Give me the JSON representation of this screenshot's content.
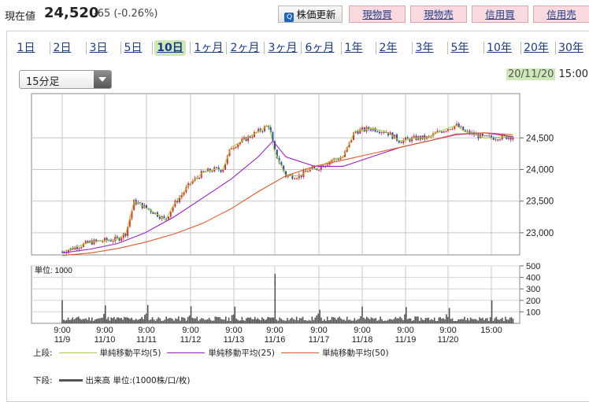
{
  "header": {
    "price_label": "現在値",
    "price_value": "24,520",
    "price_change": "-65 (-0.26%)",
    "refresh_button": "株価更新",
    "buy_spot": "現物買",
    "sell_spot": "現物売",
    "buy_margin": "信用買",
    "sell_margin": "信用売"
  },
  "tabs": [
    {
      "label": "1日",
      "active": false
    },
    {
      "label": "2日",
      "active": false
    },
    {
      "label": "3日",
      "active": false
    },
    {
      "label": "5日",
      "active": false
    },
    {
      "label": "10日",
      "active": true
    },
    {
      "label": "1ヶ月",
      "active": false
    },
    {
      "label": "2ヶ月",
      "active": false
    },
    {
      "label": "3ヶ月",
      "active": false
    },
    {
      "label": "6ヶ月",
      "active": false
    },
    {
      "label": "1年",
      "active": false
    },
    {
      "label": "2年",
      "active": false
    },
    {
      "label": "3年",
      "active": false
    },
    {
      "label": "5年",
      "active": false
    },
    {
      "label": "10年",
      "active": false
    },
    {
      "label": "20年",
      "active": false
    },
    {
      "label": "30年",
      "active": false
    }
  ],
  "interval_select": {
    "value": "15分足"
  },
  "timestamp": {
    "date": "20/11/20",
    "time": "15:00"
  },
  "colors": {
    "up": "#e03030",
    "down": "#2a4ea8",
    "ma5": "#a6cf3a",
    "ma25": "#a020c8",
    "ma50": "#e05a28",
    "volume": "#555555"
  },
  "chart_data": [
    {
      "type": "line",
      "name": "price",
      "y_ticks": [
        "24,500",
        "24,000",
        "23,500",
        "23,000"
      ],
      "ylim": [
        22650,
        25200
      ],
      "series": [
        {
          "name": "単純移動平均(5)",
          "points": [
            [
              0,
              22700
            ],
            [
              1,
              22850
            ],
            [
              2,
              22900
            ],
            [
              2.3,
              23000
            ],
            [
              2.6,
              23500
            ],
            [
              3,
              23400
            ],
            [
              3.4,
              23300
            ],
            [
              3.7,
              23200
            ],
            [
              4,
              23450
            ],
            [
              4.6,
              23800
            ],
            [
              5,
              23950
            ],
            [
              5.4,
              24000
            ],
            [
              5.7,
              24000
            ],
            [
              6,
              24350
            ],
            [
              6.6,
              24500
            ],
            [
              7,
              24600
            ],
            [
              7.4,
              24700
            ],
            [
              7.6,
              24300
            ],
            [
              8,
              23900
            ],
            [
              8.5,
              23900
            ],
            [
              8.8,
              24000
            ],
            [
              9,
              24000
            ],
            [
              9.6,
              24150
            ],
            [
              10,
              24200
            ],
            [
              10.4,
              24600
            ],
            [
              11,
              24650
            ],
            [
              11.5,
              24600
            ],
            [
              12,
              24450
            ],
            [
              12.6,
              24500
            ],
            [
              13,
              24500
            ],
            [
              13.4,
              24600
            ],
            [
              14,
              24700
            ],
            [
              14.3,
              24600
            ],
            [
              15,
              24500
            ],
            [
              16,
              24520
            ]
          ]
        },
        {
          "name": "単純移動平均(25)",
          "points": [
            [
              0,
              22680
            ],
            [
              1,
              22740
            ],
            [
              2,
              22830
            ],
            [
              3,
              23000
            ],
            [
              4,
              23250
            ],
            [
              5,
              23550
            ],
            [
              6,
              23850
            ],
            [
              7,
              24200
            ],
            [
              7.55,
              24450
            ],
            [
              8,
              24200
            ],
            [
              9,
              24050
            ],
            [
              10,
              24050
            ],
            [
              11,
              24200
            ],
            [
              12,
              24350
            ],
            [
              13,
              24450
            ],
            [
              14,
              24550
            ],
            [
              15,
              24580
            ],
            [
              16,
              24520
            ]
          ]
        },
        {
          "name": "単純移動平均(50)",
          "points": [
            [
              0,
              22640
            ],
            [
              1,
              22680
            ],
            [
              2,
              22750
            ],
            [
              3,
              22850
            ],
            [
              4,
              22980
            ],
            [
              5,
              23150
            ],
            [
              6,
              23380
            ],
            [
              7,
              23650
            ],
            [
              8,
              23900
            ],
            [
              9,
              24050
            ],
            [
              10,
              24150
            ],
            [
              11,
              24250
            ],
            [
              12,
              24350
            ],
            [
              13,
              24450
            ],
            [
              14,
              24560
            ],
            [
              15,
              24580
            ],
            [
              16,
              24550
            ]
          ]
        }
      ]
    },
    {
      "type": "bar",
      "name": "volume",
      "title": "単位: 1000",
      "y_ticks": [
        "500",
        "400",
        "300",
        "200",
        "100"
      ],
      "ylim": [
        0,
        500
      ],
      "categories": [
        "9:00\n11/9",
        "9:00\n11/10",
        "9:00\n11/11",
        "9:00\n11/12",
        "9:00\n11/13",
        "9:00\n11/16",
        "9:00\n11/17",
        "9:00\n11/18",
        "9:00\n11/19",
        "9:00\n11/20",
        "15:00"
      ],
      "spikes": [
        210,
        250,
        180,
        190,
        220,
        490,
        120,
        170,
        190,
        220,
        210,
        100
      ]
    }
  ],
  "legend": {
    "top_label": "上段:",
    "ma5": "単純移動平均(5)",
    "ma25": "単純移動平均(25)",
    "ma50": "単純移動平均(50)",
    "bottom_label": "下段:",
    "volume": "出来高 単位:(1000株/口/枚)"
  }
}
